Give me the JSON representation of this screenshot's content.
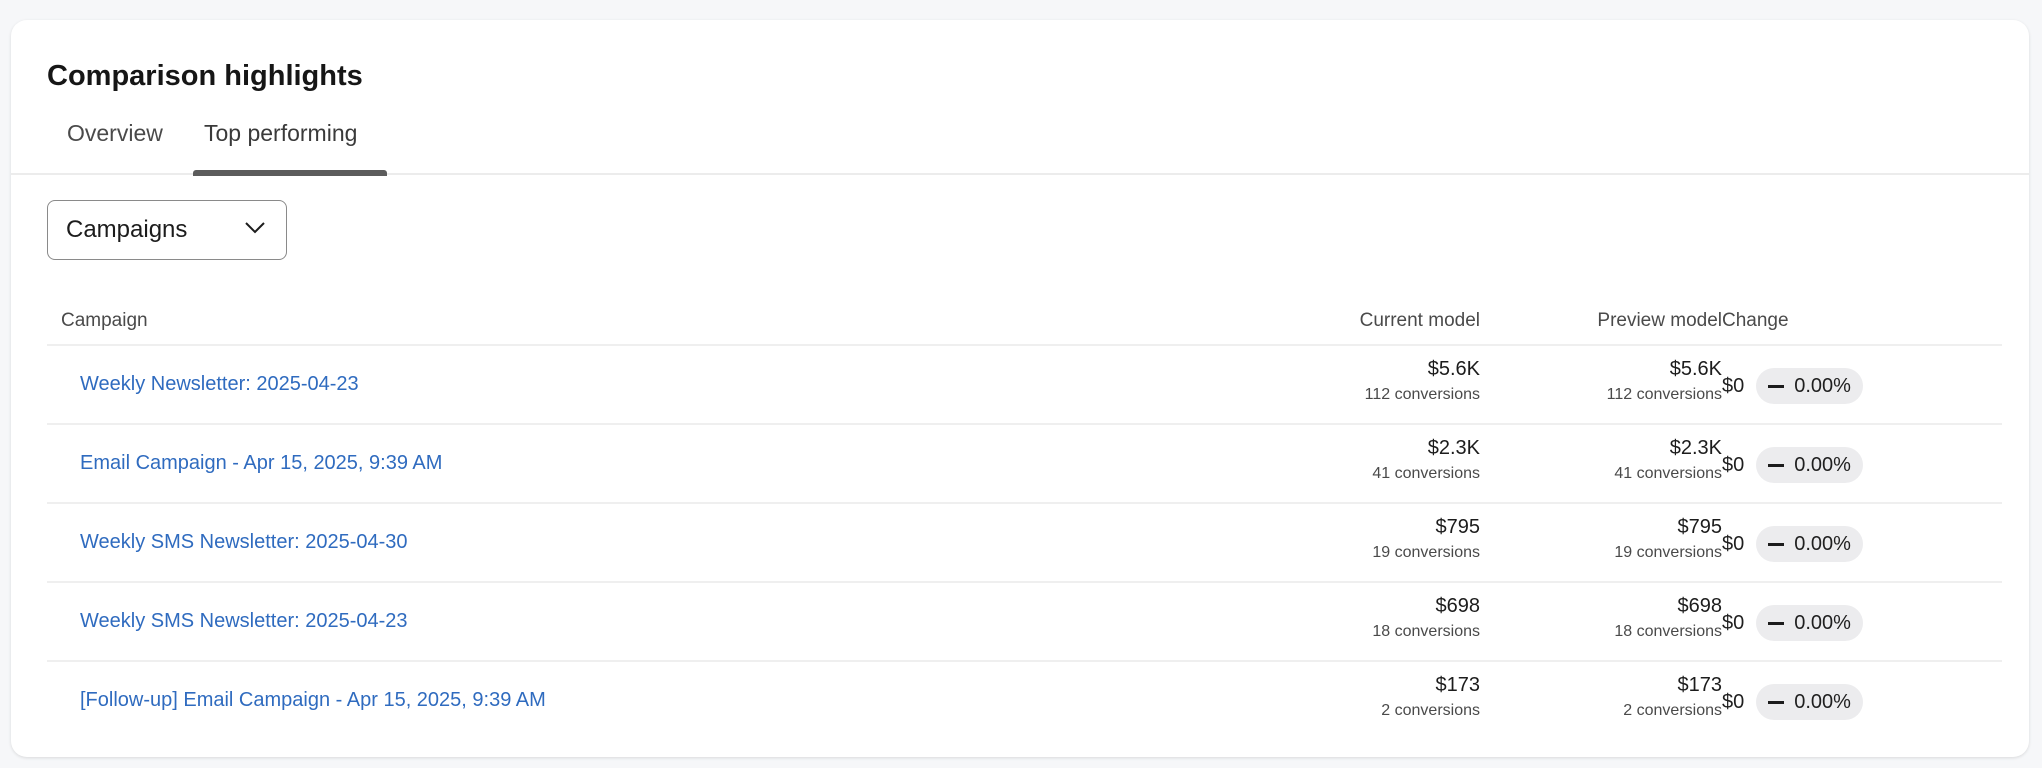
{
  "title": "Comparison highlights",
  "tabs": [
    {
      "label": "Overview",
      "active": false
    },
    {
      "label": "Top performing",
      "active": true
    }
  ],
  "dropdown": {
    "selected": "Campaigns",
    "icon": "chevron-down-icon"
  },
  "table": {
    "headers": {
      "campaign": "Campaign",
      "current": "Current model",
      "preview": "Preview model",
      "change": "Change"
    },
    "rows": [
      {
        "name": "Weekly Newsletter: 2025-04-23",
        "current_value": "$5.6K",
        "current_conv": "112 conversions",
        "preview_value": "$5.6K",
        "preview_conv": "112 conversions",
        "change_value": "$0",
        "change_pct": "0.00%"
      },
      {
        "name": "Email Campaign - Apr 15, 2025, 9:39 AM",
        "current_value": "$2.3K",
        "current_conv": "41 conversions",
        "preview_value": "$2.3K",
        "preview_conv": "41 conversions",
        "change_value": "$0",
        "change_pct": "0.00%"
      },
      {
        "name": "Weekly SMS Newsletter: 2025-04-30",
        "current_value": "$795",
        "current_conv": "19 conversions",
        "preview_value": "$795",
        "preview_conv": "19 conversions",
        "change_value": "$0",
        "change_pct": "0.00%"
      },
      {
        "name": "Weekly SMS Newsletter: 2025-04-23",
        "current_value": "$698",
        "current_conv": "18 conversions",
        "preview_value": "$698",
        "preview_conv": "18 conversions",
        "change_value": "$0",
        "change_pct": "0.00%"
      },
      {
        "name": "[Follow-up] Email Campaign - Apr 15, 2025, 9:39 AM",
        "current_value": "$173",
        "current_conv": "2 conversions",
        "preview_value": "$173",
        "preview_conv": "2 conversions",
        "change_value": "$0",
        "change_pct": "0.00%"
      }
    ]
  },
  "colors": {
    "link": "#2f6bbf",
    "pill_bg": "#ececee",
    "tab_underline": "#5c5c5c"
  }
}
